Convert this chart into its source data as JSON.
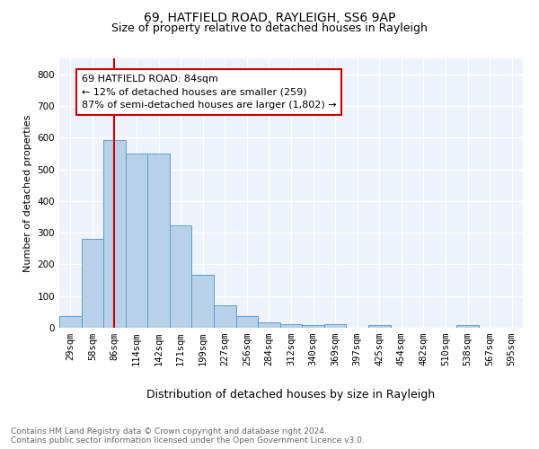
{
  "title1": "69, HATFIELD ROAD, RAYLEIGH, SS6 9AP",
  "title2": "Size of property relative to detached houses in Rayleigh",
  "xlabel": "Distribution of detached houses by size in Rayleigh",
  "ylabel": "Number of detached properties",
  "bin_labels": [
    "29sqm",
    "58sqm",
    "86sqm",
    "114sqm",
    "142sqm",
    "171sqm",
    "199sqm",
    "227sqm",
    "256sqm",
    "284sqm",
    "312sqm",
    "340sqm",
    "369sqm",
    "397sqm",
    "425sqm",
    "454sqm",
    "482sqm",
    "510sqm",
    "538sqm",
    "567sqm",
    "595sqm"
  ],
  "bar_values": [
    37,
    280,
    593,
    551,
    551,
    323,
    168,
    70,
    38,
    18,
    11,
    9,
    10,
    0,
    8,
    0,
    0,
    0,
    8,
    0,
    0
  ],
  "bar_color": "#b8d0e8",
  "bar_edge_color": "#5a9fd4",
  "property_bin_index": 2,
  "vline_color": "#cc0000",
  "annotation_text": "69 HATFIELD ROAD: 84sqm\n← 12% of detached houses are smaller (259)\n87% of semi-detached houses are larger (1,802) →",
  "annotation_box_color": "#ffffff",
  "annotation_box_edge": "#cc0000",
  "ylim": [
    0,
    850
  ],
  "yticks": [
    0,
    100,
    200,
    300,
    400,
    500,
    600,
    700,
    800
  ],
  "background_color": "#eef2fb",
  "grid_color": "#ffffff",
  "fig_bg_color": "#ffffff",
  "footer_text": "Contains HM Land Registry data © Crown copyright and database right 2024.\nContains public sector information licensed under the Open Government Licence v3.0.",
  "title1_fontsize": 10,
  "title2_fontsize": 9,
  "xlabel_fontsize": 9,
  "ylabel_fontsize": 8,
  "tick_fontsize": 7.5,
  "annotation_fontsize": 8,
  "footer_fontsize": 6.5
}
